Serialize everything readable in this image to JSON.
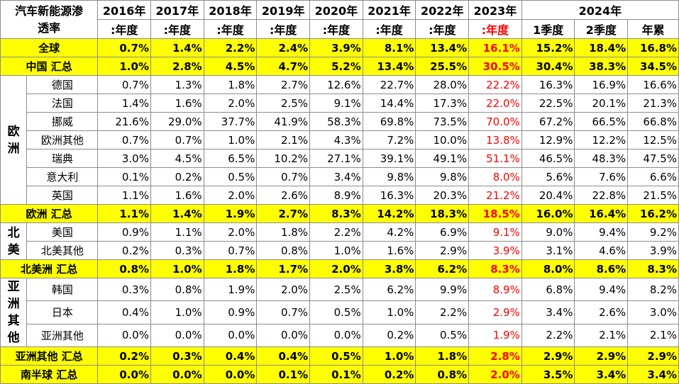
{
  "header": {
    "title_line1": "汽车新能源渗",
    "title_line2": "透率",
    "years": [
      "2016年",
      "2017年",
      "2018年",
      "2019年",
      "2020年",
      "2021年",
      "2022年",
      "2023年"
    ],
    "period_labels": [
      ":年度",
      ":年度",
      ":年度",
      ":年度",
      ":年度",
      ":年度",
      ":年度",
      ":年度"
    ],
    "year_2024": "2024年",
    "sub_2024": [
      "1季度",
      "2季度",
      "年累"
    ]
  },
  "regions": {
    "europe": "欧洲",
    "north_america": "北美",
    "asia": "亚洲其他"
  },
  "rows": {
    "global": {
      "label": "全球",
      "values": [
        "0.7%",
        "1.4%",
        "2.2%",
        "2.4%",
        "3.9%",
        "8.1%",
        "13.4%",
        "16.1%",
        "15.2%",
        "18.4%",
        "16.8%"
      ]
    },
    "china_total": {
      "label": "中国 汇总",
      "values": [
        "1.0%",
        "2.8%",
        "4.5%",
        "4.7%",
        "5.2%",
        "13.4%",
        "25.5%",
        "30.5%",
        "30.4%",
        "38.3%",
        "34.5%"
      ]
    },
    "germany": {
      "label": "德国",
      "values": [
        "0.7%",
        "1.3%",
        "1.8%",
        "2.7%",
        "12.6%",
        "22.7%",
        "28.0%",
        "22.2%",
        "16.3%",
        "16.9%",
        "16.6%"
      ]
    },
    "france": {
      "label": "法国",
      "values": [
        "1.4%",
        "1.6%",
        "2.0%",
        "2.5%",
        "9.1%",
        "14.4%",
        "17.3%",
        "22.0%",
        "22.5%",
        "20.1%",
        "21.3%"
      ]
    },
    "norway": {
      "label": "挪威",
      "values": [
        "21.6%",
        "29.0%",
        "37.7%",
        "41.9%",
        "58.3%",
        "69.8%",
        "73.5%",
        "70.0%",
        "67.2%",
        "66.5%",
        "66.8%"
      ]
    },
    "europe_other": {
      "label": "欧洲其他",
      "values": [
        "0.7%",
        "0.7%",
        "1.0%",
        "2.1%",
        "4.3%",
        "7.2%",
        "10.0%",
        "13.8%",
        "12.9%",
        "12.2%",
        "12.5%"
      ]
    },
    "sweden": {
      "label": "瑞典",
      "values": [
        "3.0%",
        "4.5%",
        "6.5%",
        "10.2%",
        "27.1%",
        "39.1%",
        "49.1%",
        "51.1%",
        "46.5%",
        "48.3%",
        "47.5%"
      ]
    },
    "italy": {
      "label": "意大利",
      "values": [
        "0.1%",
        "0.2%",
        "0.5%",
        "0.7%",
        "3.4%",
        "9.8%",
        "9.8%",
        "8.0%",
        "5.6%",
        "7.6%",
        "6.6%"
      ]
    },
    "uk": {
      "label": "英国",
      "values": [
        "1.1%",
        "1.6%",
        "2.0%",
        "2.6%",
        "8.9%",
        "16.3%",
        "20.3%",
        "21.2%",
        "20.4%",
        "22.8%",
        "21.5%"
      ]
    },
    "europe_total": {
      "label": "欧洲 汇总",
      "values": [
        "1.1%",
        "1.4%",
        "1.9%",
        "2.7%",
        "8.3%",
        "14.2%",
        "18.3%",
        "18.5%",
        "16.0%",
        "16.4%",
        "16.2%"
      ]
    },
    "usa": {
      "label": "美国",
      "values": [
        "0.9%",
        "1.1%",
        "2.0%",
        "1.8%",
        "2.2%",
        "4.2%",
        "6.9%",
        "9.1%",
        "9.0%",
        "9.4%",
        "9.2%"
      ]
    },
    "na_other": {
      "label": "北美其他",
      "values": [
        "0.2%",
        "0.3%",
        "0.7%",
        "0.8%",
        "1.0%",
        "1.6%",
        "2.9%",
        "3.9%",
        "3.1%",
        "4.6%",
        "3.9%"
      ]
    },
    "na_total": {
      "label": "北美洲 汇总",
      "values": [
        "0.8%",
        "1.0%",
        "1.8%",
        "1.7%",
        "2.0%",
        "3.8%",
        "6.2%",
        "8.3%",
        "8.0%",
        "8.6%",
        "8.3%"
      ]
    },
    "korea": {
      "label": "韩国",
      "values": [
        "0.3%",
        "0.8%",
        "1.9%",
        "2.0%",
        "2.5%",
        "6.2%",
        "9.9%",
        "8.9%",
        "6.8%",
        "9.4%",
        "8.2%"
      ]
    },
    "japan": {
      "label": "日本",
      "values": [
        "0.4%",
        "1.0%",
        "0.9%",
        "0.7%",
        "0.5%",
        "1.0%",
        "2.2%",
        "2.9%",
        "3.4%",
        "2.6%",
        "3.0%"
      ]
    },
    "asia_other": {
      "label": "亚洲其他",
      "values": [
        "0.0%",
        "0.0%",
        "0.0%",
        "0.0%",
        "0.0%",
        "0.2%",
        "0.5%",
        "1.9%",
        "2.2%",
        "2.1%",
        "2.1%"
      ]
    },
    "asia_total": {
      "label": "亚洲其他 汇总",
      "values": [
        "0.2%",
        "0.3%",
        "0.4%",
        "0.4%",
        "0.5%",
        "1.0%",
        "1.8%",
        "2.8%",
        "2.9%",
        "2.9%",
        "2.9%"
      ]
    },
    "south_total": {
      "label": "南半球 汇总",
      "values": [
        "0.0%",
        "0.0%",
        "0.0%",
        "0.1%",
        "0.1%",
        "0.2%",
        "0.8%",
        "2.0%",
        "3.5%",
        "3.4%",
        "3.4%"
      ]
    }
  },
  "colors": {
    "highlight_row": "#ffff00",
    "year_2023_text": "#ff0000",
    "grid": "#8c8c8c"
  }
}
